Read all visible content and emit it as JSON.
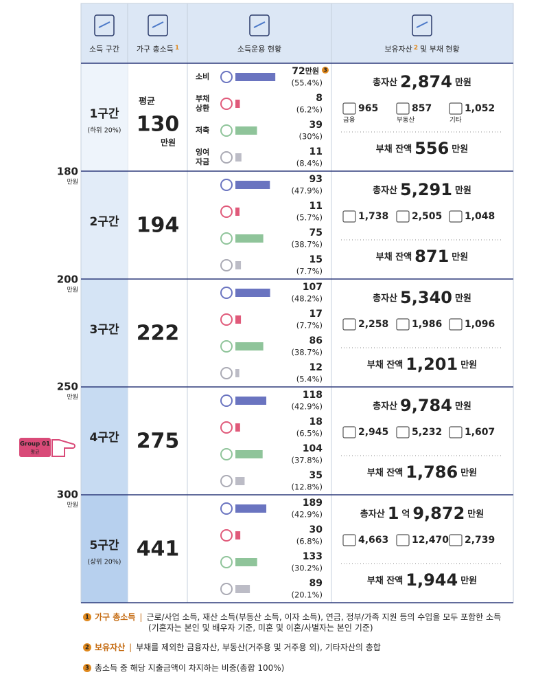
{
  "header": {
    "columns": [
      {
        "title": "소득 구간"
      },
      {
        "title": "가구 총소득",
        "note": "1"
      },
      {
        "title": "소득운용 현황"
      },
      {
        "title": "보유자산",
        "note": "2",
        "title_rest": "및 부채 현황"
      }
    ]
  },
  "labels": {
    "categories": [
      "소비",
      "부채\n상환",
      "저축",
      "잉여\n자금"
    ],
    "asset_types": [
      "금융",
      "부동산",
      "기타"
    ],
    "total": "총자산",
    "debt": "부채 잔액"
  },
  "scale": [
    {
      "value": "180",
      "unit": "만원"
    },
    {
      "value": "200",
      "unit": "만원"
    },
    {
      "value": "250",
      "unit": "만원"
    },
    {
      "value": "300",
      "unit": "만원"
    }
  ],
  "pointer": {
    "title": "Group 01",
    "sub": "평균"
  },
  "rows": [
    {
      "band": "1구간",
      "sub": "(하위 20%)",
      "income": {
        "prefix": "평균",
        "value": "130",
        "unit": "만원"
      },
      "spending": [
        {
          "amount": 72,
          "unit": "만원",
          "note": "3",
          "share": 55.4,
          "share_label": "(55.4%)"
        },
        {
          "amount": 8,
          "share": 6.2,
          "share_label": "(6.2%)"
        },
        {
          "amount": 39,
          "share": 30,
          "share_label": "(30%)"
        },
        {
          "amount": 11,
          "share": 8.4,
          "share_label": "(8.4%)"
        }
      ],
      "total": [
        "2,874",
        "만원"
      ],
      "assets": [
        "965",
        "857",
        "1,052"
      ],
      "debt": [
        "556",
        "만원"
      ]
    },
    {
      "band": "2구간",
      "income": {
        "value": "194"
      },
      "spending": [
        {
          "amount": 93,
          "share": 47.9,
          "share_label": "(47.9%)"
        },
        {
          "amount": 11,
          "share": 5.7,
          "share_label": "(5.7%)"
        },
        {
          "amount": 75,
          "share": 38.7,
          "share_label": "(38.7%)"
        },
        {
          "amount": 15,
          "share": 7.7,
          "share_label": "(7.7%)"
        }
      ],
      "total": [
        "5,291",
        "만원"
      ],
      "assets": [
        "1,738",
        "2,505",
        "1,048"
      ],
      "debt": [
        "871",
        "만원"
      ]
    },
    {
      "band": "3구간",
      "income": {
        "value": "222"
      },
      "spending": [
        {
          "amount": 107,
          "share": 48.2,
          "share_label": "(48.2%)"
        },
        {
          "amount": 17,
          "share": 7.7,
          "share_label": "(7.7%)"
        },
        {
          "amount": 86,
          "share": 38.7,
          "share_label": "(38.7%)"
        },
        {
          "amount": 12,
          "share": 5.4,
          "share_label": "(5.4%)"
        }
      ],
      "total": [
        "5,340",
        "만원"
      ],
      "assets": [
        "2,258",
        "1,986",
        "1,096"
      ],
      "debt": [
        "1,201",
        "만원"
      ]
    },
    {
      "band": "4구간",
      "income": {
        "value": "275"
      },
      "spending": [
        {
          "amount": 118,
          "share": 42.9,
          "share_label": "(42.9%)"
        },
        {
          "amount": 18,
          "share": 6.5,
          "share_label": "(6.5%)"
        },
        {
          "amount": 104,
          "share": 37.8,
          "share_label": "(37.8%)"
        },
        {
          "amount": 35,
          "share": 12.8,
          "share_label": "(12.8%)"
        }
      ],
      "total": [
        "9,784",
        "만원"
      ],
      "assets": [
        "2,945",
        "5,232",
        "1,607"
      ],
      "debt": [
        "1,786",
        "만원"
      ]
    },
    {
      "band": "5구간",
      "sub": "(상위 20%)",
      "income": {
        "value": "441"
      },
      "spending": [
        {
          "amount": 189,
          "share": 42.9,
          "share_label": "(42.9%)"
        },
        {
          "amount": 30,
          "share": 6.8,
          "share_label": "(6.8%)"
        },
        {
          "amount": 133,
          "share": 30.2,
          "share_label": "(30.2%)"
        },
        {
          "amount": 89,
          "share": 20.1,
          "share_label": "(20.1%)"
        }
      ],
      "total": [
        "1",
        "억",
        "9,872",
        "만원"
      ],
      "assets": [
        "4,663",
        "12,470",
        "2,739"
      ],
      "debt": [
        "1,944",
        "만원"
      ]
    }
  ],
  "footnotes": [
    {
      "marker": "1",
      "title": "가구 총소득",
      "sep": "|",
      "text": "근로/사업 소득, 재산 소득(부동산 소득, 이자 소득), 연금, 정부/가족 지원 등의 수입을 모두 포함한 소득",
      "text2": "(기혼자는 본인 및 배우자 기준, 미혼 및 이혼/사별자는 본인 기준)"
    },
    {
      "marker": "2",
      "title": "보유자산",
      "sep": "|",
      "text": "부채를 제외한 금융자산, 부동산(거주용 및 거주용 외), 기타자산의 총합"
    },
    {
      "marker": "3",
      "text": "총소득 중 해당 지출금액이 차지하는 비중(총합 100%)"
    }
  ]
}
